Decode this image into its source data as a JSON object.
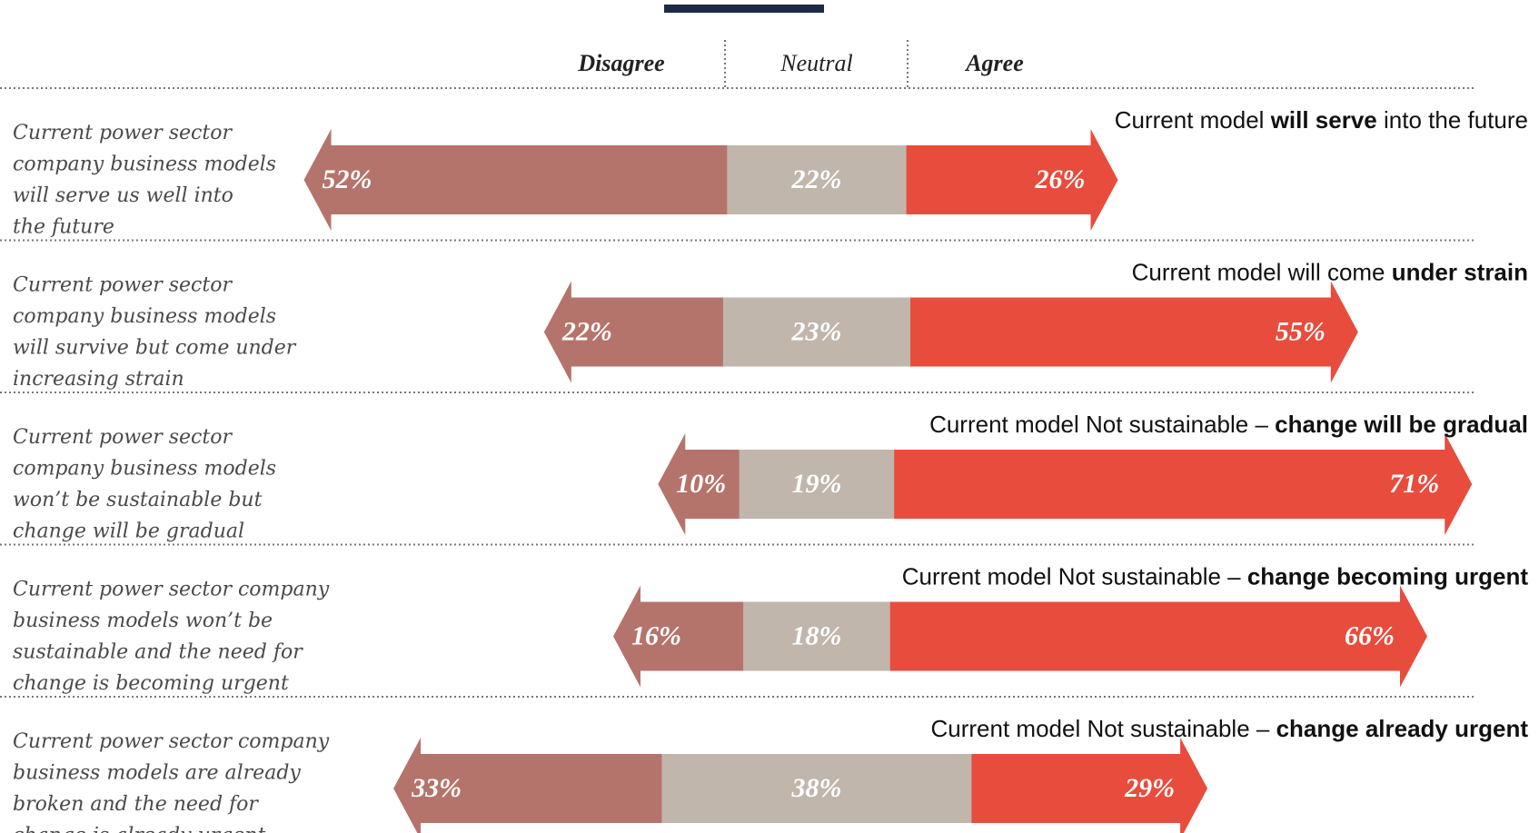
{
  "chart_data": {
    "type": "diverging_bar",
    "categories": [
      [
        "Current power sector",
        "company business models",
        "will serve us well into",
        "the future"
      ],
      [
        "Current power sector",
        "company business models",
        "will survive but come under",
        "increasing strain"
      ],
      [
        "Current power sector",
        "company business models",
        "won’t be sustainable but",
        "change will be gradual"
      ],
      [
        "Current power sector company",
        "business models won’t be",
        "sustainable and the need for",
        "change is becoming urgent"
      ],
      [
        "Current power sector company",
        "business models are already",
        "broken and the need for",
        "change is already urgent"
      ]
    ],
    "series": [
      {
        "name": "Disagree",
        "color": "#b5746b",
        "values": [
          52,
          22,
          10,
          16,
          33
        ],
        "value_labels": [
          "52%",
          "22%",
          "10%",
          "16%",
          "33%"
        ]
      },
      {
        "name": "Neutral",
        "color": "#c1b6ab",
        "values": [
          22,
          23,
          19,
          18,
          38
        ],
        "value_labels": [
          "22%",
          "23%",
          "19%",
          "18%",
          "38%"
        ]
      },
      {
        "name": "Agree",
        "color": "#e84c3d",
        "values": [
          26,
          55,
          71,
          66,
          29
        ],
        "value_labels": [
          "26%",
          "55%",
          "71%",
          "66%",
          "29%"
        ]
      }
    ],
    "annotations": [
      [
        {
          "text": "Current model ",
          "bold": false
        },
        {
          "text": "will serve",
          "bold": true
        },
        {
          "text": " into the future",
          "bold": false
        }
      ],
      [
        {
          "text": "Current model will come ",
          "bold": false
        },
        {
          "text": "under strain",
          "bold": true
        }
      ],
      [
        {
          "text": "Current model Not sustainable – ",
          "bold": false
        },
        {
          "text": "change will be gradual",
          "bold": true
        }
      ],
      [
        {
          "text": "Current model Not sustainable – ",
          "bold": false
        },
        {
          "text": "change becoming urgent",
          "bold": true
        }
      ],
      [
        {
          "text": "Current model Not sustainable – ",
          "bold": false
        },
        {
          "text": "change already urgent",
          "bold": true
        }
      ]
    ]
  }
}
